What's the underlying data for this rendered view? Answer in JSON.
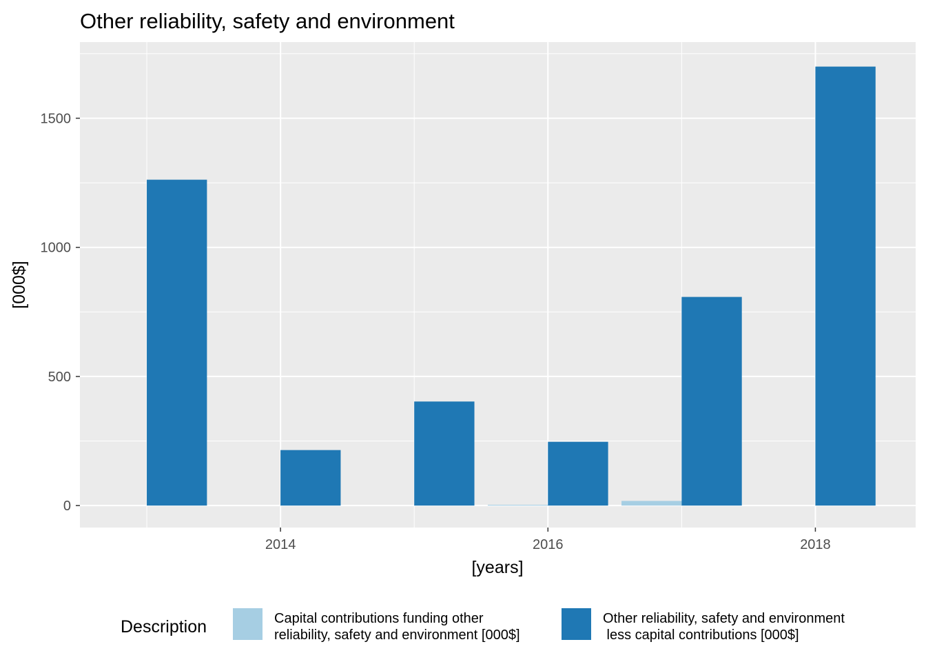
{
  "chart_data": {
    "type": "bar",
    "title": "Other reliability, safety and environment",
    "xlabel": "[years]",
    "ylabel": "[000$]",
    "x_ticks": [
      "2014",
      "2016",
      "2018"
    ],
    "y_ticks": [
      "0",
      "500",
      "1000",
      "1500"
    ],
    "xlim": [
      2012.5,
      2018.75
    ],
    "ylim": [
      -85,
      1795
    ],
    "grid": true,
    "legend_title": "Description",
    "legend_position": "bottom",
    "categories": [
      2013,
      2014,
      2015,
      2016,
      2017,
      2018
    ],
    "series": [
      {
        "name_lines": [
          "Capital contributions funding other",
          "reliability, safety and environment [000$]"
        ],
        "color": "#a6cee3",
        "values": [
          0,
          0,
          0,
          3,
          18,
          0
        ]
      },
      {
        "name_lines": [
          "Other reliability, safety and environment",
          " less capital contributions [000$]"
        ],
        "color": "#1f78b4",
        "values": [
          1262,
          215,
          403,
          247,
          808,
          1700
        ]
      }
    ]
  }
}
